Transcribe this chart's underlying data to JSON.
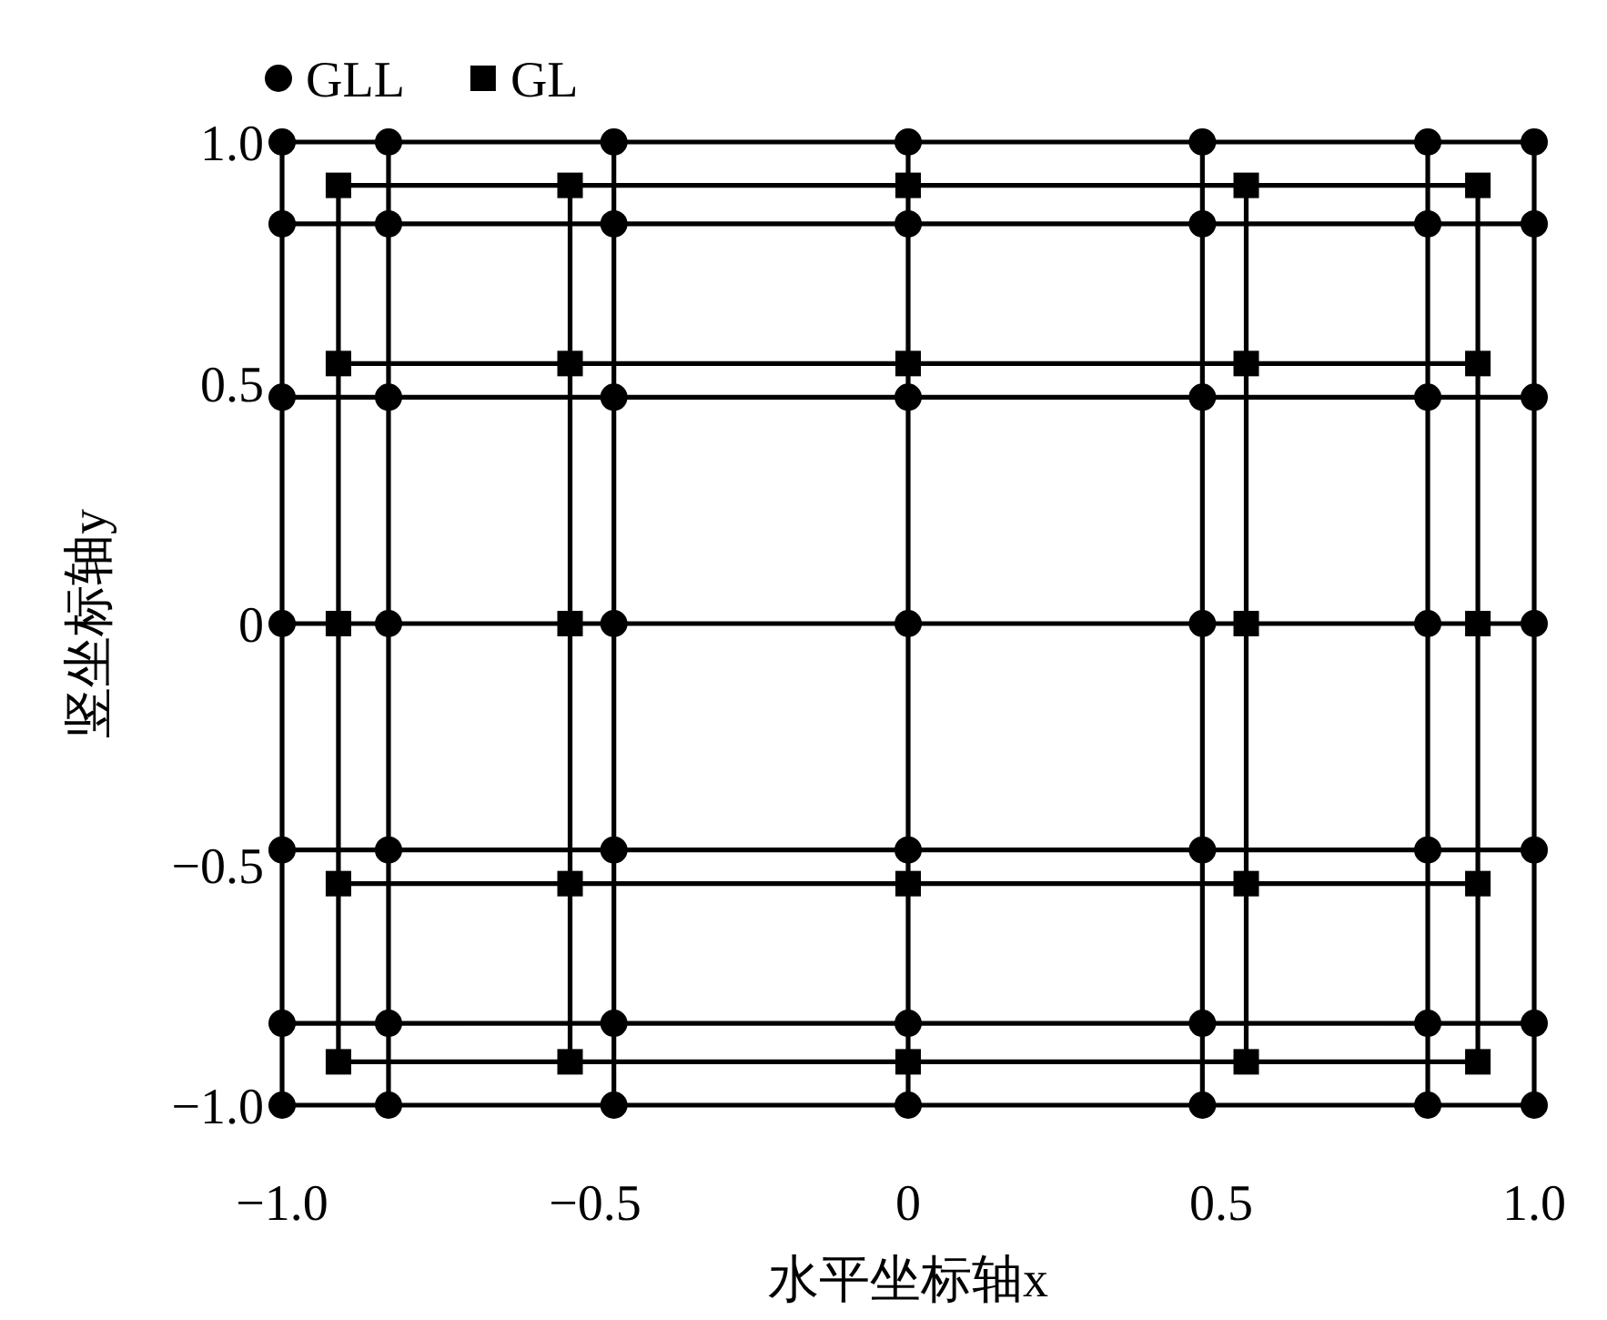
{
  "chart_data": {
    "type": "scatter",
    "xlabel": "水平坐标轴x",
    "ylabel": "竖坐标轴y",
    "legend": "top left",
    "grid": false,
    "xlim": [
      -1,
      1
    ],
    "ylim": [
      -1,
      1
    ],
    "xticks": [
      {
        "value": -1,
        "label": "−1.0"
      },
      {
        "value": -0.5,
        "label": "−0.5"
      },
      0,
      0.5,
      {
        "value": 1,
        "label": "1.0"
      }
    ],
    "yticks": [
      {
        "value": -1,
        "label": "−1.0"
      },
      {
        "value": -0.5,
        "label": "−0.5"
      },
      0,
      0.5,
      {
        "value": 1,
        "label": "1.0"
      }
    ],
    "series": [
      {
        "type": "line",
        "marker": "none",
        "color": "#000000",
        "x": [
          -1,
          1
        ],
        "values": [
          -1,
          -1
        ]
      },
      {
        "type": "line",
        "marker": "none",
        "color": "#000000",
        "x": [
          -1,
          1
        ],
        "values": [
          -0.83,
          -0.83
        ]
      },
      {
        "type": "line",
        "marker": "none",
        "color": "#000000",
        "x": [
          -1,
          1
        ],
        "values": [
          -0.47,
          -0.47
        ]
      },
      {
        "type": "line",
        "marker": "none",
        "color": "#000000",
        "x": [
          -1,
          1
        ],
        "values": [
          0,
          0
        ]
      },
      {
        "type": "line",
        "marker": "none",
        "color": "#000000",
        "x": [
          -1,
          1
        ],
        "values": [
          0.47,
          0.47
        ]
      },
      {
        "type": "line",
        "marker": "none",
        "color": "#000000",
        "x": [
          -1,
          1
        ],
        "values": [
          0.83,
          0.83
        ]
      },
      {
        "type": "line",
        "marker": "none",
        "color": "#000000",
        "x": [
          -1,
          1
        ],
        "values": [
          1,
          1
        ]
      },
      {
        "type": "line",
        "marker": "none",
        "color": "#000000",
        "x": [
          -1,
          -1
        ],
        "values": [
          -1,
          1
        ]
      },
      {
        "type": "line",
        "marker": "none",
        "color": "#000000",
        "x": [
          -0.83,
          -0.83
        ],
        "values": [
          -1,
          1
        ]
      },
      {
        "type": "line",
        "marker": "none",
        "color": "#000000",
        "x": [
          -0.47,
          -0.47
        ],
        "values": [
          -1,
          1
        ]
      },
      {
        "type": "line",
        "marker": "none",
        "color": "#000000",
        "x": [
          0,
          0
        ],
        "values": [
          -1,
          1
        ]
      },
      {
        "type": "line",
        "marker": "none",
        "color": "#000000",
        "x": [
          0.47,
          0.47
        ],
        "values": [
          -1,
          1
        ]
      },
      {
        "type": "line",
        "marker": "none",
        "color": "#000000",
        "x": [
          0.83,
          0.83
        ],
        "values": [
          -1,
          1
        ]
      },
      {
        "type": "line",
        "marker": "none",
        "color": "#000000",
        "x": [
          1,
          1
        ],
        "values": [
          -1,
          1
        ]
      },
      {
        "type": "line",
        "marker": "none",
        "color": "#000000",
        "x": [
          -0.91,
          0.91
        ],
        "values": [
          -0.91,
          -0.91
        ]
      },
      {
        "type": "line",
        "marker": "none",
        "color": "#000000",
        "x": [
          -0.91,
          0.91
        ],
        "values": [
          -0.54,
          -0.54
        ]
      },
      {
        "type": "line",
        "marker": "none",
        "color": "#000000",
        "x": [
          -0.91,
          0.91
        ],
        "values": [
          0.54,
          0.54
        ]
      },
      {
        "type": "line",
        "marker": "none",
        "color": "#000000",
        "x": [
          -0.91,
          0.91
        ],
        "values": [
          0.91,
          0.91
        ]
      },
      {
        "type": "line",
        "marker": "none",
        "color": "#000000",
        "x": [
          -0.91,
          -0.91
        ],
        "values": [
          -0.91,
          0.91
        ]
      },
      {
        "type": "line",
        "marker": "none",
        "color": "#000000",
        "x": [
          -0.54,
          -0.54
        ],
        "values": [
          -0.91,
          0.91
        ]
      },
      {
        "type": "line",
        "marker": "none",
        "color": "#000000",
        "x": [
          0.54,
          0.54
        ],
        "values": [
          -0.91,
          0.91
        ]
      },
      {
        "type": "line",
        "marker": "none",
        "color": "#000000",
        "x": [
          0.91,
          0.91
        ],
        "values": [
          -0.91,
          0.91
        ]
      },
      {
        "name": "GLL",
        "marker": "circle",
        "color": "#000000",
        "x": [
          -1,
          -0.83,
          -0.47,
          0,
          0.47,
          0.83,
          1,
          -1,
          -0.83,
          -0.47,
          0,
          0.47,
          0.83,
          1,
          -1,
          -0.83,
          -0.47,
          0,
          0.47,
          0.83,
          1,
          -1,
          -0.83,
          -0.47,
          0,
          0.47,
          0.83,
          1,
          -1,
          -0.83,
          -0.47,
          0,
          0.47,
          0.83,
          1,
          -1,
          -0.83,
          -0.47,
          0,
          0.47,
          0.83,
          1,
          -1,
          -0.83,
          -0.47,
          0,
          0.47,
          0.83,
          1
        ],
        "values": [
          -1,
          -1,
          -1,
          -1,
          -1,
          -1,
          -1,
          -0.83,
          -0.83,
          -0.83,
          -0.83,
          -0.83,
          -0.83,
          -0.83,
          -0.47,
          -0.47,
          -0.47,
          -0.47,
          -0.47,
          -0.47,
          -0.47,
          0,
          0,
          0,
          0,
          0,
          0,
          0,
          0.47,
          0.47,
          0.47,
          0.47,
          0.47,
          0.47,
          0.47,
          0.83,
          0.83,
          0.83,
          0.83,
          0.83,
          0.83,
          0.83,
          1,
          1,
          1,
          1,
          1,
          1,
          1
        ]
      },
      {
        "name": "GL",
        "marker": "square",
        "color": "#000000",
        "x": [
          -0.91,
          -0.54,
          0,
          0.54,
          0.91,
          -0.91,
          -0.54,
          0,
          0.54,
          0.91,
          -0.91,
          -0.54,
          0,
          0.54,
          0.91,
          -0.91,
          -0.54,
          0,
          0.54,
          0.91,
          -0.91,
          -0.54,
          0,
          0.54,
          0.91
        ],
        "values": [
          -0.91,
          -0.91,
          -0.91,
          -0.91,
          -0.91,
          -0.54,
          -0.54,
          -0.54,
          -0.54,
          -0.54,
          0,
          0,
          null,
          0,
          0,
          0.54,
          0.54,
          0.54,
          0.54,
          0.54,
          0.91,
          0.91,
          0.91,
          0.91,
          0.91
        ]
      }
    ]
  }
}
